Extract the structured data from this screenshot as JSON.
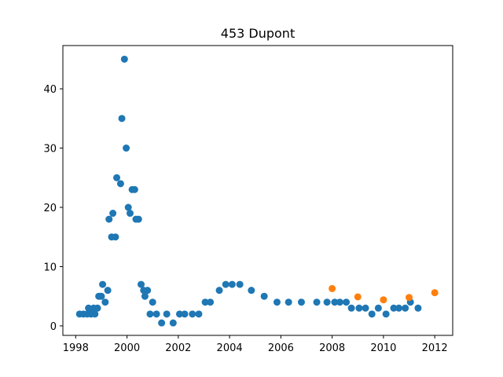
{
  "chart_data": {
    "type": "scatter",
    "title": "453 Dupont",
    "xlabel": "",
    "ylabel": "",
    "xlim": [
      1997.5,
      2012.7
    ],
    "ylim": [
      -1.6,
      47.3
    ],
    "xticks": [
      1998,
      2000,
      2002,
      2004,
      2006,
      2008,
      2010,
      2012
    ],
    "yticks": [
      0,
      10,
      20,
      30,
      40
    ],
    "grid": false,
    "series": [
      {
        "color": "#1f77b4",
        "points": [
          [
            1998.15,
            2
          ],
          [
            1998.3,
            2
          ],
          [
            1998.45,
            2
          ],
          [
            1998.5,
            3
          ],
          [
            1998.6,
            2
          ],
          [
            1998.7,
            3
          ],
          [
            1998.75,
            2
          ],
          [
            1998.85,
            3
          ],
          [
            1998.9,
            5
          ],
          [
            1999.0,
            5
          ],
          [
            1999.05,
            7
          ],
          [
            1999.15,
            4
          ],
          [
            1999.25,
            6
          ],
          [
            1999.3,
            18
          ],
          [
            1999.4,
            15
          ],
          [
            1999.45,
            19
          ],
          [
            1999.55,
            15
          ],
          [
            1999.6,
            25
          ],
          [
            1999.75,
            24
          ],
          [
            1999.8,
            35
          ],
          [
            1999.9,
            45
          ],
          [
            1999.97,
            30
          ],
          [
            2000.05,
            20
          ],
          [
            2000.12,
            19
          ],
          [
            2000.2,
            23
          ],
          [
            2000.3,
            23
          ],
          [
            2000.35,
            18
          ],
          [
            2000.45,
            18
          ],
          [
            2000.55,
            7
          ],
          [
            2000.65,
            6
          ],
          [
            2000.7,
            5
          ],
          [
            2000.8,
            6
          ],
          [
            2000.9,
            2
          ],
          [
            2001.0,
            4
          ],
          [
            2001.15,
            2
          ],
          [
            2001.35,
            0.5
          ],
          [
            2001.55,
            2
          ],
          [
            2001.8,
            0.5
          ],
          [
            2002.05,
            2
          ],
          [
            2002.25,
            2
          ],
          [
            2002.55,
            2
          ],
          [
            2002.8,
            2
          ],
          [
            2003.05,
            4
          ],
          [
            2003.25,
            4
          ],
          [
            2003.6,
            6
          ],
          [
            2003.85,
            7
          ],
          [
            2004.1,
            7
          ],
          [
            2004.4,
            7
          ],
          [
            2004.85,
            6
          ],
          [
            2005.35,
            5
          ],
          [
            2005.85,
            4
          ],
          [
            2006.3,
            4
          ],
          [
            2006.8,
            4
          ],
          [
            2007.4,
            4
          ],
          [
            2007.8,
            4
          ],
          [
            2008.1,
            4
          ],
          [
            2008.3,
            4
          ],
          [
            2008.55,
            4
          ],
          [
            2008.75,
            3
          ],
          [
            2009.05,
            3
          ],
          [
            2009.3,
            3
          ],
          [
            2009.55,
            2
          ],
          [
            2009.8,
            3
          ],
          [
            2010.1,
            2
          ],
          [
            2010.4,
            3
          ],
          [
            2010.6,
            3
          ],
          [
            2010.85,
            3
          ],
          [
            2011.05,
            4
          ],
          [
            2011.35,
            3
          ]
        ]
      },
      {
        "color": "#ff7f0e",
        "points": [
          [
            2008.0,
            6.3
          ],
          [
            2009.0,
            4.9
          ],
          [
            2010.0,
            4.4
          ],
          [
            2011.0,
            4.8
          ],
          [
            2012.0,
            5.6
          ]
        ]
      }
    ]
  }
}
